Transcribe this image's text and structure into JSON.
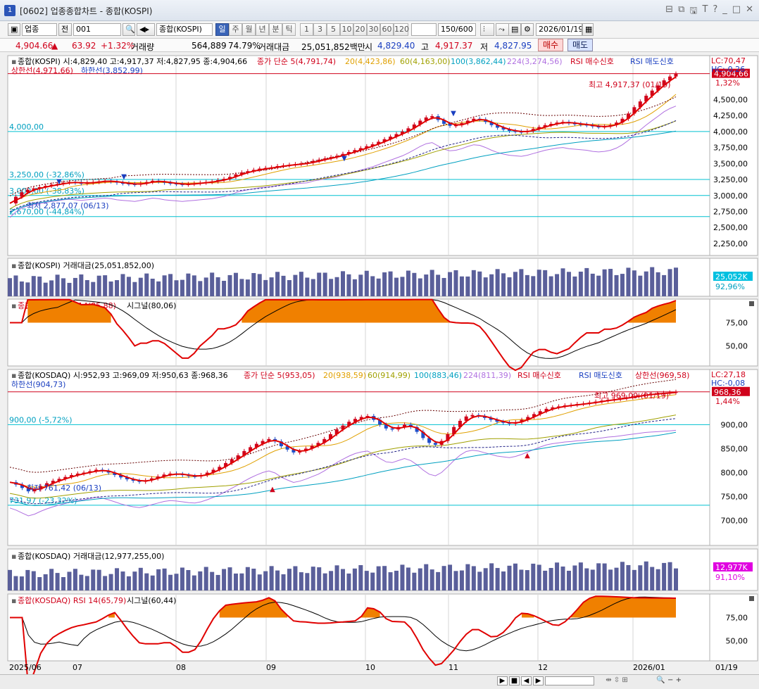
{
  "window": {
    "title": "[0602] 업종종합차트 - 종합(KOSPI)",
    "icon": "1",
    "controls": [
      "⊟",
      "⧉",
      "🖫",
      "T",
      "?",
      "_",
      "□",
      "✕"
    ]
  },
  "toolbar": {
    "market": "업종",
    "all": "전",
    "code": "001",
    "name": "종합(KOSPI)",
    "periods": [
      "일",
      "주",
      "월",
      "년",
      "분",
      "틱"
    ],
    "active_period": "일",
    "minutes": [
      "1",
      "3",
      "5",
      "10",
      "20",
      "30",
      "60",
      "120"
    ],
    "count": "150/600",
    "date": "2026/01/19"
  },
  "quote": {
    "price": "4,904.66",
    "change": "63.92",
    "change_pct": "+1.32%",
    "volume_label": "거래량",
    "volume": "564,889",
    "volume_ratio": "74.79%",
    "amount_label": "거래대금",
    "amount": "25,051,852백만",
    "open_label": "시",
    "open": "4,829.40",
    "high_label": "고",
    "high": "4,917.37",
    "low_label": "저",
    "low": "4,827.95",
    "buy": "매수",
    "sell": "매도"
  },
  "panes": {
    "kospi_price": {
      "header": "종합(KOSPI) 시:4,829,40 고:4,917,37 저:4,827,95 종:4,904,66",
      "legend": [
        "종가 단순 5(4,791,74)",
        "20(4,423,86)",
        "60(4,163,00)",
        "100(3,862,44)",
        "224(3,274,56)",
        "RSI 매수신호",
        "RSI 매도신호"
      ],
      "upper": "상한선(4,971,66)",
      "lower": "하한선(3,852,99)",
      "lc": "LC:70,47",
      "hc": "HC:-0,26",
      "last": "4,904,66",
      "last_pct": "1,32%",
      "max": "최고 4,917,37 (01/19)",
      "min": "최저 2,877,07 (06/13)",
      "levels": [
        "4,000,00",
        "3,250,00 (-32,86%)",
        "3,000,00 (-38,83%)",
        "2,670,00 (-44,84%)"
      ],
      "yticks": [
        "4,500,00",
        "4,250,00",
        "4,000,00",
        "3,750,00",
        "3,500,00",
        "3,250,00",
        "3,000,00",
        "2,750,00",
        "2,500,00",
        "2,250,00"
      ]
    },
    "kospi_amount": {
      "header": "종합(KOSPI) 거래대금(25,051,852,00)",
      "last": "25,052K",
      "pct": "92,96%"
    },
    "kospi_rsi": {
      "header": "종합(KOSPI) RSI 14(85,88)",
      "signal": "시그널(80,06)",
      "yticks": [
        "75,00",
        "50,00"
      ]
    },
    "kosdaq_price": {
      "header": "종합(KOSDAQ) 시:952,93 고:969,09 저:950,63 종:968,36",
      "legend": [
        "종가 단순 5(953,05)",
        "20(938,59)",
        "60(914,99)",
        "100(883,46)",
        "224(811,39)",
        "RSI 매수신호",
        "RSI 매도신호"
      ],
      "upper": "상한선(969,58)",
      "lower": "하한선(904,73)",
      "lc": "LC:27,18",
      "hc": "HC:-0,08",
      "last": "968,36",
      "last_pct": "1,44%",
      "max": "최고 969,09 (01/19)",
      "min": "최저 761,42 (06/13)",
      "levels": [
        "900,00 (-5,72%)",
        "731,97 (-23,32%)"
      ],
      "yticks": [
        "900,00",
        "850,00",
        "800,00",
        "750,00",
        "700,00"
      ]
    },
    "kosdaq_amount": {
      "header": "종합(KOSDAQ) 거래대금(12,977,255,00)",
      "last": "12,977K",
      "pct": "91,10%"
    },
    "kosdaq_rsi": {
      "header": "종합(KOSDAQ) RSI 14(65,79)",
      "signal": "시그널(60,44)",
      "yticks": [
        "75,00",
        "50,00"
      ]
    }
  },
  "xaxis": [
    "2025/06",
    "07",
    "08",
    "09",
    "10",
    "11",
    "12",
    "2026/01"
  ],
  "xaxis_right": "01/19",
  "colors": {
    "up": "#d0021b",
    "down": "#1f4fc9",
    "ma5": "#e00000",
    "ma20": "#e0a000",
    "ma60": "#a0a000",
    "ma100": "#00a0c0",
    "ma224": "#b070e0",
    "rsi": "#e00000",
    "fill": "#f08000",
    "vol": "#5a5f9a"
  },
  "chart_data": [
    {
      "type": "line",
      "title": "종합(KOSPI)",
      "series": [
        {
          "name": "종가",
          "values": [
            2877,
            2980,
            3050,
            3090,
            3110,
            3130,
            3150,
            3170,
            3180,
            3200,
            3210,
            3200,
            3190,
            3200,
            3210,
            3220,
            3230,
            3220,
            3200,
            3190,
            3180,
            3170,
            3190,
            3210,
            3230,
            3220,
            3200,
            3190,
            3180,
            3170,
            3180,
            3190,
            3200,
            3210,
            3220,
            3240,
            3260,
            3290,
            3330,
            3360,
            3380,
            3400,
            3420,
            3430,
            3440,
            3460,
            3470,
            3480,
            3490,
            3500,
            3510,
            3540,
            3560,
            3580,
            3600,
            3620,
            3650,
            3680,
            3710,
            3740,
            3770,
            3800,
            3840,
            3880,
            3920,
            3960,
            4000,
            4050,
            4110,
            4170,
            4220,
            4240,
            4180,
            4120,
            4090,
            4100,
            4130,
            4170,
            4200,
            4190,
            4150,
            4100,
            4060,
            4030,
            4010,
            4000,
            3990,
            4010,
            4040,
            4070,
            4100,
            4120,
            4140,
            4150,
            4130,
            4120,
            4110,
            4100,
            4080,
            4070,
            4080,
            4100,
            4140,
            4200,
            4280,
            4380,
            4470,
            4560,
            4640,
            4720,
            4800,
            4860,
            4904.66
          ]
        }
      ],
      "ylim": [
        2150,
        5000
      ]
    },
    {
      "type": "line",
      "title": "종합(KOSDAQ)",
      "series": [
        {
          "name": "종가",
          "values": [
            780,
            775,
            768,
            761,
            765,
            772,
            778,
            783,
            787,
            791,
            795,
            798,
            800,
            803,
            806,
            804,
            800,
            795,
            790,
            786,
            783,
            781,
            784,
            788,
            792,
            796,
            798,
            797,
            795,
            793,
            792,
            795,
            800,
            806,
            812,
            820,
            828,
            836,
            845,
            853,
            860,
            866,
            870,
            865,
            855,
            848,
            842,
            845,
            850,
            856,
            862,
            870,
            880,
            890,
            898,
            906,
            912,
            916,
            918,
            910,
            900,
            892,
            890,
            895,
            900,
            895,
            885,
            872,
            862,
            858,
            866,
            880,
            895,
            908,
            917,
            920,
            918,
            914,
            910,
            906,
            904,
            902,
            905,
            910,
            916,
            922,
            928,
            933,
            936,
            938,
            940,
            941,
            943,
            944,
            946,
            948,
            950,
            952,
            953,
            955,
            957,
            959,
            961,
            963,
            964,
            965,
            966,
            967,
            968.36
          ]
        }
      ],
      "ylim": [
        660,
        990
      ]
    }
  ]
}
